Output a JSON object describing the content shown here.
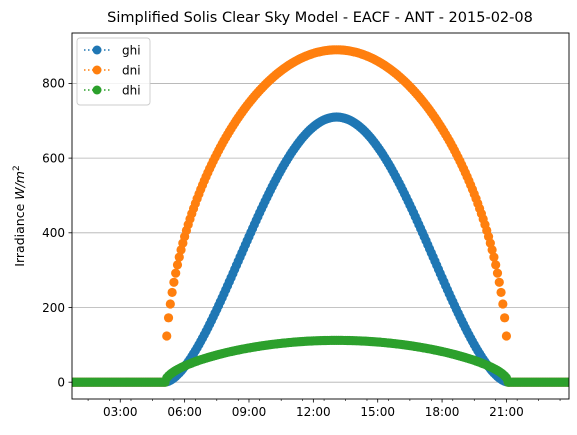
{
  "chart_data": {
    "type": "scatter",
    "title": "Simplified Solis Clear Sky Model - EACF - ANT - 2015-02-08",
    "ylabel_prefix": "Irradiance ",
    "ylabel_unit": "W/m",
    "ylabel_exp": "2",
    "xlim": [
      "00:45",
      "23:55"
    ],
    "ylim": [
      -45,
      935
    ],
    "x_ticks": [
      "03:00",
      "06:00",
      "09:00",
      "12:00",
      "15:00",
      "18:00",
      "21:00"
    ],
    "y_ticks": [
      0,
      200,
      400,
      600,
      800
    ],
    "grid": "horizontal",
    "legend_position": "top-left",
    "x_range_minutes": [
      45,
      1435
    ],
    "x_tick_minutes": [
      180,
      360,
      540,
      720,
      900,
      1080,
      1260
    ],
    "sample_step_minutes": 5,
    "day_start": "05:05",
    "day_end": "21:05",
    "series": [
      {
        "name": "ghi",
        "color": "#1f77b4",
        "peak": 710,
        "peak_time": "13:05",
        "shape_exponent": 1.65
      },
      {
        "name": "dni",
        "color": "#ff7f0e",
        "peak": 890,
        "peak_time": "13:05",
        "shape_exponent": 0.48
      },
      {
        "name": "dhi",
        "color": "#2ca02c",
        "peak": 112,
        "peak_time": "13:05",
        "shape_exponent": 0.55
      }
    ]
  }
}
